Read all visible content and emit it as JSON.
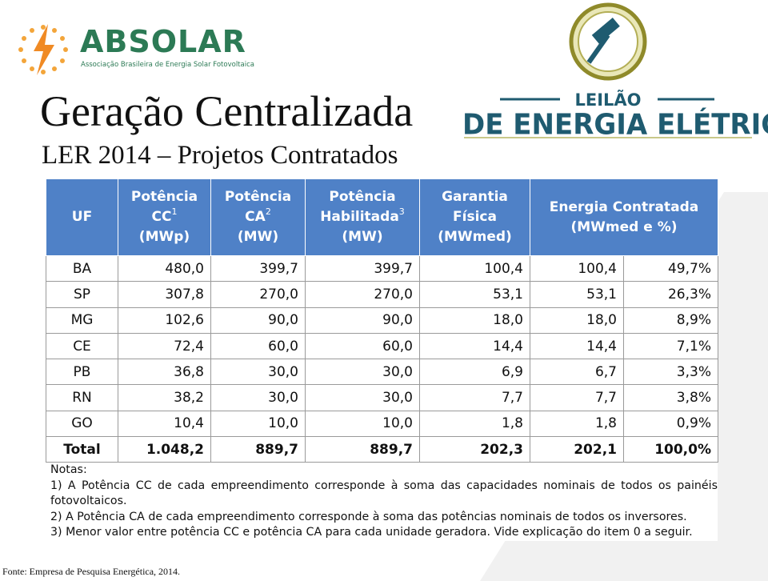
{
  "logo": {
    "name": "ABSOLAR",
    "tagline": "Associação Brasileira de Energia Solar Fotovoltaica"
  },
  "title": "Geração Centralizada",
  "subtitle": "LER 2014 – Projetos Contratados",
  "auction_logo": {
    "top": "LEILÃO",
    "bottom": "DE ENERGIA ELÉTRICA"
  },
  "table": {
    "header": [
      {
        "lines": [
          "UF"
        ],
        "sup": null,
        "unit": null,
        "span": 1
      },
      {
        "lines": [
          "Potência",
          "CC"
        ],
        "sup": "1",
        "unit": "(MWp)",
        "span": 1
      },
      {
        "lines": [
          "Potência",
          "CA"
        ],
        "sup": "2",
        "unit": "(MW)",
        "span": 1
      },
      {
        "lines": [
          "Potência",
          "Habilitada"
        ],
        "sup": "3",
        "unit": "(MW)",
        "span": 1
      },
      {
        "lines": [
          "Garantia",
          "Física"
        ],
        "sup": null,
        "unit": "(MWmed)",
        "span": 1
      },
      {
        "lines": [
          "Energia Contratada"
        ],
        "sup": null,
        "unit": "(MWmed e %)",
        "span": 2
      }
    ],
    "rows": [
      [
        "BA",
        "480,0",
        "399,7",
        "399,7",
        "100,4",
        "100,4",
        "49,7%"
      ],
      [
        "SP",
        "307,8",
        "270,0",
        "270,0",
        "53,1",
        "53,1",
        "26,3%"
      ],
      [
        "MG",
        "102,6",
        "90,0",
        "90,0",
        "18,0",
        "18,0",
        "8,9%"
      ],
      [
        "CE",
        "72,4",
        "60,0",
        "60,0",
        "14,4",
        "14,4",
        "7,1%"
      ],
      [
        "PB",
        "36,8",
        "30,0",
        "30,0",
        "6,9",
        "6,7",
        "3,3%"
      ],
      [
        "RN",
        "38,2",
        "30,0",
        "30,0",
        "7,7",
        "7,7",
        "3,8%"
      ],
      [
        "GO",
        "10,4",
        "10,0",
        "10,0",
        "1,8",
        "1,8",
        "0,9%"
      ]
    ],
    "total": [
      "Total",
      "1.048,2",
      "889,7",
      "889,7",
      "202,3",
      "202,1",
      "100,0%"
    ]
  },
  "notes": {
    "title": "Notas:",
    "items": [
      "1) A Potência CC de cada empreendimento corresponde à soma das capacidades nominais de todos os painéis fotovoltaicos.",
      "2) A Potência CA de cada empreendimento corresponde à soma das potências nominais de todos os inversores.",
      "3) Menor valor entre potência CC e potência CA para cada unidade geradora. Vide explicação do item 0 a seguir."
    ]
  },
  "source": "Fonte: Empresa de Pesquisa Energética, 2014."
}
